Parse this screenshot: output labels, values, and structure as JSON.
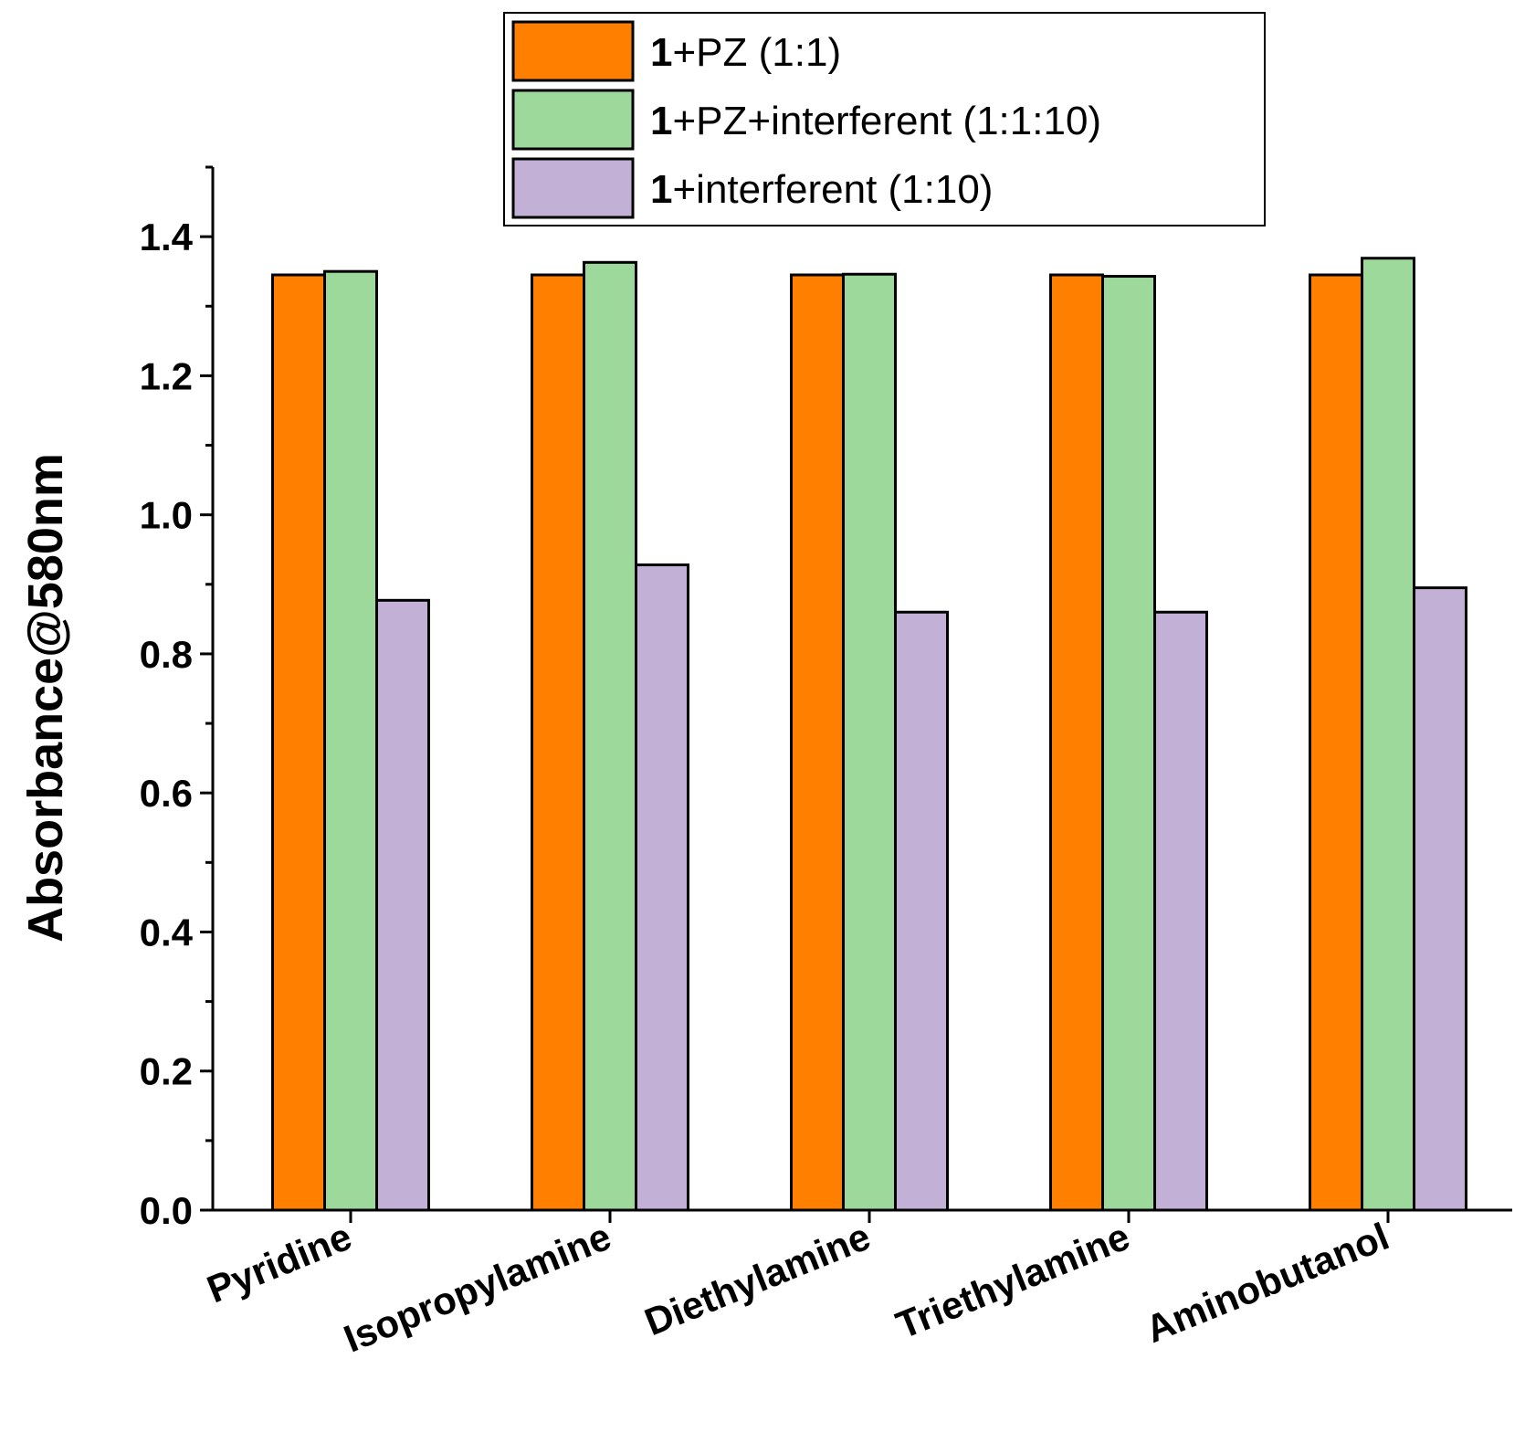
{
  "chart_data": {
    "type": "bar",
    "title": "",
    "xlabel": "",
    "ylabel": "Absorbance@580nm",
    "ylim": [
      0,
      1.5
    ],
    "yticks": [
      "0.0",
      "0.2",
      "0.4",
      "0.6",
      "0.8",
      "1.0",
      "1.2",
      "1.4"
    ],
    "grid": false,
    "legend_position": "top-center",
    "categories": [
      "Pyridine",
      "Isopropylamine",
      "Diethylamine",
      "Triethylamine",
      "Aminobutanol"
    ],
    "series": [
      {
        "name": "1+PZ (1:1)",
        "prefix": "1",
        "suffix": "+PZ (1:1)",
        "color": "#ff8000",
        "values": [
          1.345,
          1.345,
          1.345,
          1.345,
          1.345
        ]
      },
      {
        "name": "1+PZ+interferent (1:1:10)",
        "prefix": "1",
        "suffix": "+PZ+interferent (1:1:10)",
        "color": "#9ed99c",
        "values": [
          1.35,
          1.363,
          1.346,
          1.343,
          1.369
        ]
      },
      {
        "name": "1+interferent (1:10)",
        "prefix": "1",
        "suffix": "+interferent (1:10)",
        "color": "#c3b0d6",
        "values": [
          0.877,
          0.928,
          0.86,
          0.86,
          0.895
        ]
      }
    ]
  }
}
